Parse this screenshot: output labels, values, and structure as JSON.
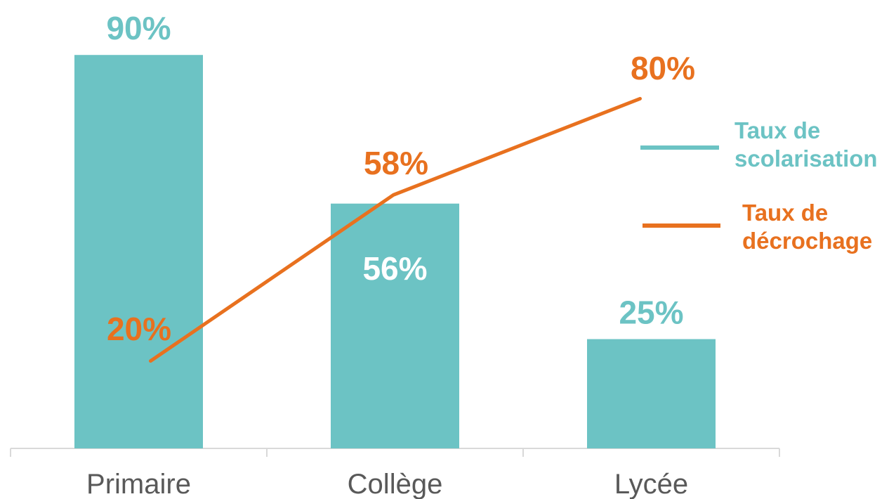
{
  "chart_data": {
    "type": "bar",
    "categories": [
      "Primaire",
      "Collège",
      "Lycée"
    ],
    "series": [
      {
        "name": "Taux de scolarisation",
        "type": "bar",
        "values": [
          90,
          56,
          25
        ],
        "labels": [
          "90%",
          "56%",
          "25%"
        ],
        "color": "#6cc3c4"
      },
      {
        "name": "Taux de décrochage",
        "type": "line",
        "values": [
          20,
          58,
          80
        ],
        "labels": [
          "20%",
          "58%",
          "80%"
        ],
        "color": "#e8711f"
      }
    ],
    "ylim": [
      0,
      100
    ],
    "grid": false,
    "legend_position": "right",
    "axis_color": "#d9d9d9",
    "category_label_color": "#595959"
  },
  "legend": {
    "scolarisation_line1": "Taux de",
    "scolarisation_line2": "scolarisation",
    "decrochage_line1": "Taux de",
    "decrochage_line2": "décrochage"
  }
}
